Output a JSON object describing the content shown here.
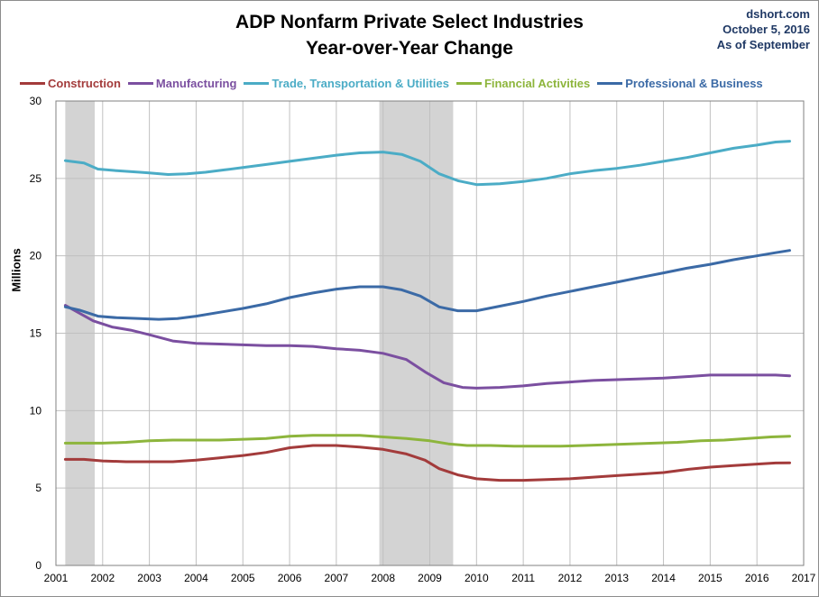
{
  "chart_data": {
    "type": "line",
    "title": "ADP Nonfarm Private Select Industries",
    "subtitle": "Year-over-Year Change",
    "source_lines": [
      "dshort.com",
      "October 5, 2016",
      "As of September"
    ],
    "ylabel": "Millions",
    "xlabel": "",
    "xlim": [
      2001,
      2017
    ],
    "ylim": [
      0,
      30
    ],
    "x_ticks": [
      "2001",
      "2002",
      "2003",
      "2004",
      "2005",
      "2006",
      "2007",
      "2008",
      "2009",
      "2010",
      "2011",
      "2012",
      "2013",
      "2014",
      "2015",
      "2016",
      "2017"
    ],
    "y_ticks": [
      "0",
      "5",
      "10",
      "15",
      "20",
      "25",
      "30"
    ],
    "grid": true,
    "legend_position": "top",
    "recessions": [
      [
        2001.2,
        2001.83
      ],
      [
        2007.92,
        2009.5
      ]
    ],
    "series": [
      {
        "name": "Construction",
        "color": "#a33b3b",
        "points": [
          [
            2001.2,
            6.85
          ],
          [
            2001.6,
            6.85
          ],
          [
            2002.0,
            6.75
          ],
          [
            2002.5,
            6.7
          ],
          [
            2003.0,
            6.7
          ],
          [
            2003.5,
            6.7
          ],
          [
            2004.0,
            6.8
          ],
          [
            2004.5,
            6.95
          ],
          [
            2005.0,
            7.1
          ],
          [
            2005.5,
            7.3
          ],
          [
            2006.0,
            7.6
          ],
          [
            2006.5,
            7.75
          ],
          [
            2007.0,
            7.75
          ],
          [
            2007.5,
            7.65
          ],
          [
            2008.0,
            7.5
          ],
          [
            2008.5,
            7.2
          ],
          [
            2008.9,
            6.8
          ],
          [
            2009.2,
            6.25
          ],
          [
            2009.6,
            5.85
          ],
          [
            2010.0,
            5.6
          ],
          [
            2010.5,
            5.5
          ],
          [
            2011.0,
            5.5
          ],
          [
            2011.5,
            5.55
          ],
          [
            2012.0,
            5.6
          ],
          [
            2012.5,
            5.7
          ],
          [
            2013.0,
            5.8
          ],
          [
            2013.5,
            5.9
          ],
          [
            2014.0,
            6.0
          ],
          [
            2014.5,
            6.2
          ],
          [
            2015.0,
            6.35
          ],
          [
            2015.5,
            6.45
          ],
          [
            2016.0,
            6.55
          ],
          [
            2016.4,
            6.62
          ],
          [
            2016.7,
            6.63
          ]
        ]
      },
      {
        "name": "Manufacturing",
        "color": "#7b4fa0",
        "points": [
          [
            2001.2,
            16.8
          ],
          [
            2001.5,
            16.3
          ],
          [
            2001.8,
            15.8
          ],
          [
            2002.2,
            15.4
          ],
          [
            2002.6,
            15.2
          ],
          [
            2003.0,
            14.9
          ],
          [
            2003.5,
            14.5
          ],
          [
            2004.0,
            14.35
          ],
          [
            2004.5,
            14.3
          ],
          [
            2005.0,
            14.25
          ],
          [
            2005.5,
            14.2
          ],
          [
            2006.0,
            14.2
          ],
          [
            2006.5,
            14.15
          ],
          [
            2007.0,
            14.0
          ],
          [
            2007.5,
            13.9
          ],
          [
            2008.0,
            13.7
          ],
          [
            2008.5,
            13.3
          ],
          [
            2008.9,
            12.5
          ],
          [
            2009.3,
            11.8
          ],
          [
            2009.7,
            11.5
          ],
          [
            2010.0,
            11.45
          ],
          [
            2010.5,
            11.5
          ],
          [
            2011.0,
            11.6
          ],
          [
            2011.5,
            11.75
          ],
          [
            2012.0,
            11.85
          ],
          [
            2012.5,
            11.95
          ],
          [
            2013.0,
            12.0
          ],
          [
            2013.5,
            12.05
          ],
          [
            2014.0,
            12.1
          ],
          [
            2014.5,
            12.2
          ],
          [
            2015.0,
            12.3
          ],
          [
            2015.5,
            12.3
          ],
          [
            2016.0,
            12.3
          ],
          [
            2016.4,
            12.3
          ],
          [
            2016.7,
            12.25
          ]
        ]
      },
      {
        "name": "Trade, Transportation & Utilities",
        "color": "#4bacc6",
        "points": [
          [
            2001.2,
            26.15
          ],
          [
            2001.6,
            26.0
          ],
          [
            2001.9,
            25.6
          ],
          [
            2002.3,
            25.5
          ],
          [
            2002.8,
            25.4
          ],
          [
            2003.0,
            25.35
          ],
          [
            2003.4,
            25.25
          ],
          [
            2003.8,
            25.3
          ],
          [
            2004.2,
            25.4
          ],
          [
            2004.6,
            25.55
          ],
          [
            2005.0,
            25.7
          ],
          [
            2005.5,
            25.9
          ],
          [
            2006.0,
            26.1
          ],
          [
            2006.5,
            26.3
          ],
          [
            2007.0,
            26.5
          ],
          [
            2007.5,
            26.65
          ],
          [
            2008.0,
            26.7
          ],
          [
            2008.4,
            26.55
          ],
          [
            2008.8,
            26.1
          ],
          [
            2009.2,
            25.3
          ],
          [
            2009.6,
            24.85
          ],
          [
            2010.0,
            24.6
          ],
          [
            2010.5,
            24.65
          ],
          [
            2011.0,
            24.8
          ],
          [
            2011.5,
            25.0
          ],
          [
            2012.0,
            25.3
          ],
          [
            2012.5,
            25.5
          ],
          [
            2013.0,
            25.65
          ],
          [
            2013.5,
            25.85
          ],
          [
            2014.0,
            26.1
          ],
          [
            2014.5,
            26.35
          ],
          [
            2015.0,
            26.65
          ],
          [
            2015.5,
            26.95
          ],
          [
            2016.0,
            27.15
          ],
          [
            2016.4,
            27.35
          ],
          [
            2016.7,
            27.4
          ]
        ]
      },
      {
        "name": "Financial Activities",
        "color": "#8db53c",
        "points": [
          [
            2001.2,
            7.9
          ],
          [
            2002.0,
            7.9
          ],
          [
            2002.5,
            7.95
          ],
          [
            2003.0,
            8.05
          ],
          [
            2003.5,
            8.1
          ],
          [
            2004.0,
            8.1
          ],
          [
            2004.5,
            8.1
          ],
          [
            2005.0,
            8.15
          ],
          [
            2005.5,
            8.2
          ],
          [
            2006.0,
            8.35
          ],
          [
            2006.5,
            8.4
          ],
          [
            2007.0,
            8.4
          ],
          [
            2007.5,
            8.4
          ],
          [
            2008.0,
            8.3
          ],
          [
            2008.5,
            8.2
          ],
          [
            2009.0,
            8.05
          ],
          [
            2009.4,
            7.85
          ],
          [
            2009.8,
            7.75
          ],
          [
            2010.3,
            7.75
          ],
          [
            2010.8,
            7.7
          ],
          [
            2011.3,
            7.7
          ],
          [
            2011.8,
            7.7
          ],
          [
            2012.3,
            7.75
          ],
          [
            2012.8,
            7.8
          ],
          [
            2013.3,
            7.85
          ],
          [
            2013.8,
            7.9
          ],
          [
            2014.3,
            7.95
          ],
          [
            2014.8,
            8.05
          ],
          [
            2015.3,
            8.1
          ],
          [
            2015.8,
            8.2
          ],
          [
            2016.3,
            8.3
          ],
          [
            2016.7,
            8.35
          ]
        ]
      },
      {
        "name": "Professional & Business",
        "color": "#3b6aa6",
        "points": [
          [
            2001.2,
            16.7
          ],
          [
            2001.5,
            16.5
          ],
          [
            2001.9,
            16.1
          ],
          [
            2002.3,
            16.0
          ],
          [
            2002.8,
            15.95
          ],
          [
            2003.2,
            15.9
          ],
          [
            2003.6,
            15.95
          ],
          [
            2004.0,
            16.1
          ],
          [
            2004.5,
            16.35
          ],
          [
            2005.0,
            16.6
          ],
          [
            2005.5,
            16.9
          ],
          [
            2006.0,
            17.3
          ],
          [
            2006.5,
            17.6
          ],
          [
            2007.0,
            17.85
          ],
          [
            2007.5,
            18.0
          ],
          [
            2008.0,
            18.0
          ],
          [
            2008.4,
            17.8
          ],
          [
            2008.8,
            17.4
          ],
          [
            2009.2,
            16.7
          ],
          [
            2009.6,
            16.45
          ],
          [
            2010.0,
            16.45
          ],
          [
            2010.5,
            16.75
          ],
          [
            2011.0,
            17.05
          ],
          [
            2011.5,
            17.4
          ],
          [
            2012.0,
            17.7
          ],
          [
            2012.5,
            18.0
          ],
          [
            2013.0,
            18.3
          ],
          [
            2013.5,
            18.6
          ],
          [
            2014.0,
            18.9
          ],
          [
            2014.5,
            19.2
          ],
          [
            2015.0,
            19.45
          ],
          [
            2015.5,
            19.75
          ],
          [
            2016.0,
            20.0
          ],
          [
            2016.4,
            20.2
          ],
          [
            2016.7,
            20.35
          ]
        ]
      }
    ]
  }
}
